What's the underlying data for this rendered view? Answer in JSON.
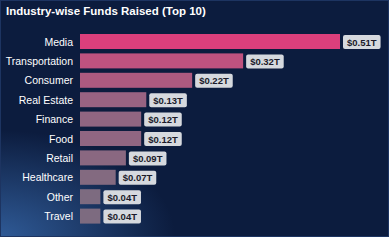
{
  "chart_data": {
    "type": "bar",
    "title": "Industry-wise Funds Raised (Top 10)",
    "orientation": "horizontal",
    "categories": [
      "Media",
      "Transportation",
      "Consumer",
      "Real Estate",
      "Finance",
      "Food",
      "Retail",
      "Healthcare",
      "Other",
      "Travel"
    ],
    "values": [
      0.51,
      0.32,
      0.22,
      0.13,
      0.12,
      0.12,
      0.09,
      0.07,
      0.04,
      0.04
    ],
    "value_labels": [
      "$0.51T",
      "$0.32T",
      "$0.22T",
      "$0.13T",
      "$0.12T",
      "$0.12T",
      "$0.09T",
      "$0.07T",
      "$0.04T",
      "$0.04T"
    ],
    "colors": [
      "#dc3f7c",
      "#bf527f",
      "#ad5a80",
      "#986382",
      "#906682",
      "#906682",
      "#8a6881",
      "#836a80",
      "#7d6b80",
      "#7d6b80"
    ],
    "data_labels": true,
    "tick_labels": "y",
    "grid": false
  }
}
